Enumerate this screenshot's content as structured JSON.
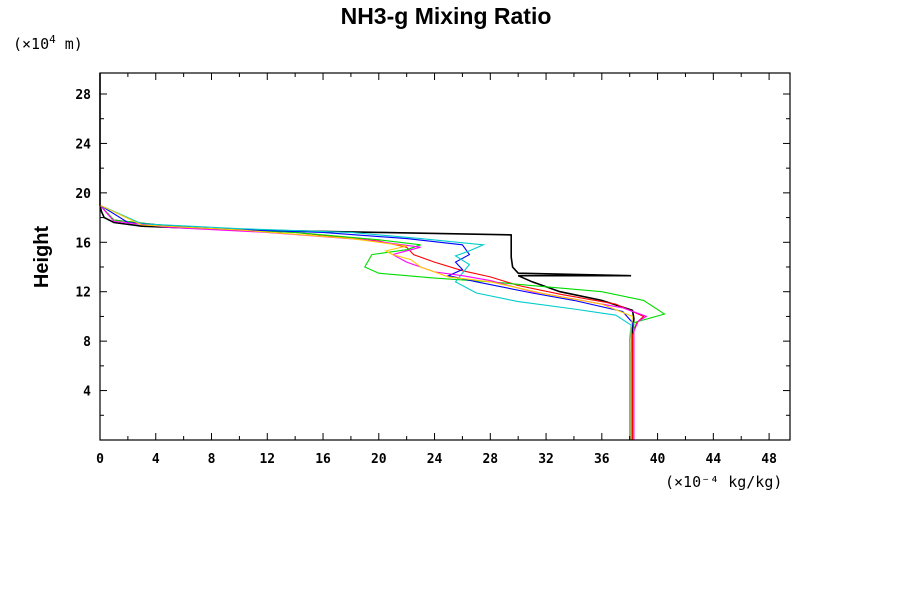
{
  "chart_data": {
    "type": "line",
    "title": "NH3-g Mixing Ratio",
    "xlabel": "",
    "ylabel": "Height",
    "x_unit": "(×10⁻⁴ kg/kg)",
    "y_unit_prefix": "(×10",
    "y_unit_exp": "4",
    "y_unit_suffix": " m)",
    "xlim": [
      0,
      49.5
    ],
    "ylim": [
      0,
      29.7
    ],
    "x_ticks": [
      0,
      4,
      8,
      12,
      16,
      20,
      24,
      28,
      32,
      36,
      40,
      44,
      48
    ],
    "y_ticks": [
      4,
      8,
      12,
      16,
      20,
      24,
      28
    ],
    "grid": false,
    "series": [
      {
        "color": "#000000",
        "points": [
          [
            38.1,
            0
          ],
          [
            38.1,
            7
          ],
          [
            38.2,
            9
          ],
          [
            38.3,
            9.8
          ],
          [
            38.2,
            10.5
          ],
          [
            36,
            11.3
          ],
          [
            33,
            12
          ],
          [
            32,
            12.4
          ],
          [
            31,
            12.8
          ],
          [
            30,
            13.3
          ],
          [
            38.1,
            13.3
          ],
          [
            30,
            13.5
          ],
          [
            29.6,
            14
          ],
          [
            29.5,
            14.8
          ],
          [
            29.5,
            16.6
          ],
          [
            20,
            16.8
          ],
          [
            10,
            17
          ],
          [
            3,
            17.3
          ],
          [
            1,
            17.6
          ],
          [
            0.3,
            18
          ],
          [
            0.1,
            18.5
          ],
          [
            0,
            19
          ],
          [
            0,
            29.7
          ]
        ]
      },
      {
        "color": "#ff0000",
        "points": [
          [
            38.2,
            0
          ],
          [
            38.2,
            8.5
          ],
          [
            38.5,
            9.5
          ],
          [
            39,
            10
          ],
          [
            37,
            11
          ],
          [
            33,
            11.8
          ],
          [
            30,
            12.5
          ],
          [
            28,
            13.2
          ],
          [
            26,
            13.7
          ],
          [
            24,
            14.4
          ],
          [
            22.5,
            15
          ],
          [
            22,
            15.6
          ],
          [
            20,
            16.1
          ],
          [
            14,
            16.8
          ],
          [
            6,
            17.2
          ],
          [
            1,
            17.8
          ],
          [
            0,
            19
          ],
          [
            0,
            29.7
          ]
        ]
      },
      {
        "color": "#00dd00",
        "points": [
          [
            38.3,
            0
          ],
          [
            38.3,
            8.5
          ],
          [
            38.3,
            9.5
          ],
          [
            40.5,
            10.2
          ],
          [
            39,
            11.3
          ],
          [
            36,
            12
          ],
          [
            32,
            12.4
          ],
          [
            28,
            12.8
          ],
          [
            24,
            13.1
          ],
          [
            20,
            13.5
          ],
          [
            19,
            14
          ],
          [
            19.5,
            15
          ],
          [
            22,
            15.4
          ],
          [
            23,
            15.8
          ],
          [
            20,
            16.2
          ],
          [
            14,
            16.8
          ],
          [
            6,
            17.2
          ],
          [
            1,
            17.8
          ],
          [
            0,
            19
          ],
          [
            0,
            29.7
          ]
        ]
      },
      {
        "color": "#0000ff",
        "points": [
          [
            38.1,
            0
          ],
          [
            38.1,
            8.5
          ],
          [
            38.2,
            9.5
          ],
          [
            37.5,
            10.4
          ],
          [
            34,
            11.3
          ],
          [
            31,
            11.9
          ],
          [
            27,
            12.8
          ],
          [
            25,
            13.3
          ],
          [
            26,
            13.8
          ],
          [
            25.5,
            14.4
          ],
          [
            26.5,
            15
          ],
          [
            26,
            15.8
          ],
          [
            22,
            16.3
          ],
          [
            16,
            16.8
          ],
          [
            8,
            17.1
          ],
          [
            2,
            17.6
          ],
          [
            0,
            19
          ],
          [
            0,
            29.7
          ]
        ]
      },
      {
        "color": "#00cccc",
        "points": [
          [
            38.0,
            0
          ],
          [
            38.0,
            8.2
          ],
          [
            38.1,
            9.3
          ],
          [
            37,
            10.1
          ],
          [
            34,
            10.6
          ],
          [
            30,
            11.2
          ],
          [
            27,
            11.9
          ],
          [
            25.5,
            12.8
          ],
          [
            26.5,
            14.2
          ],
          [
            25.5,
            14.9
          ],
          [
            26.5,
            15.3
          ],
          [
            27.5,
            15.8
          ],
          [
            23,
            16.3
          ],
          [
            18,
            16.8
          ],
          [
            10,
            17.1
          ],
          [
            3,
            17.5
          ],
          [
            0,
            19
          ],
          [
            0,
            29.7
          ]
        ]
      },
      {
        "color": "#ff00ff",
        "points": [
          [
            38.3,
            0
          ],
          [
            38.3,
            8.8
          ],
          [
            38.6,
            9.6
          ],
          [
            39.2,
            10
          ],
          [
            37.5,
            10.7
          ],
          [
            34,
            11.4
          ],
          [
            31,
            12
          ],
          [
            28,
            12.9
          ],
          [
            26,
            13.3
          ],
          [
            24,
            13.6
          ],
          [
            22,
            14.4
          ],
          [
            21,
            15
          ],
          [
            23,
            15.6
          ],
          [
            19,
            16.2
          ],
          [
            12,
            16.8
          ],
          [
            5,
            17.2
          ],
          [
            1,
            17.7
          ],
          [
            0,
            19
          ],
          [
            0,
            29.7
          ]
        ]
      },
      {
        "color": "#ffcc00",
        "points": [
          [
            38.1,
            0
          ],
          [
            38.1,
            9
          ],
          [
            38.2,
            10
          ],
          [
            36,
            11
          ],
          [
            32,
            11.8
          ],
          [
            28,
            12.8
          ],
          [
            25,
            13.2
          ],
          [
            23,
            14
          ],
          [
            22.3,
            14.6
          ],
          [
            21,
            15
          ],
          [
            20.5,
            15.3
          ],
          [
            22,
            15.7
          ],
          [
            18,
            16.3
          ],
          [
            10,
            17
          ],
          [
            3,
            17.4
          ],
          [
            0,
            19
          ],
          [
            0,
            29.7
          ]
        ]
      }
    ]
  }
}
